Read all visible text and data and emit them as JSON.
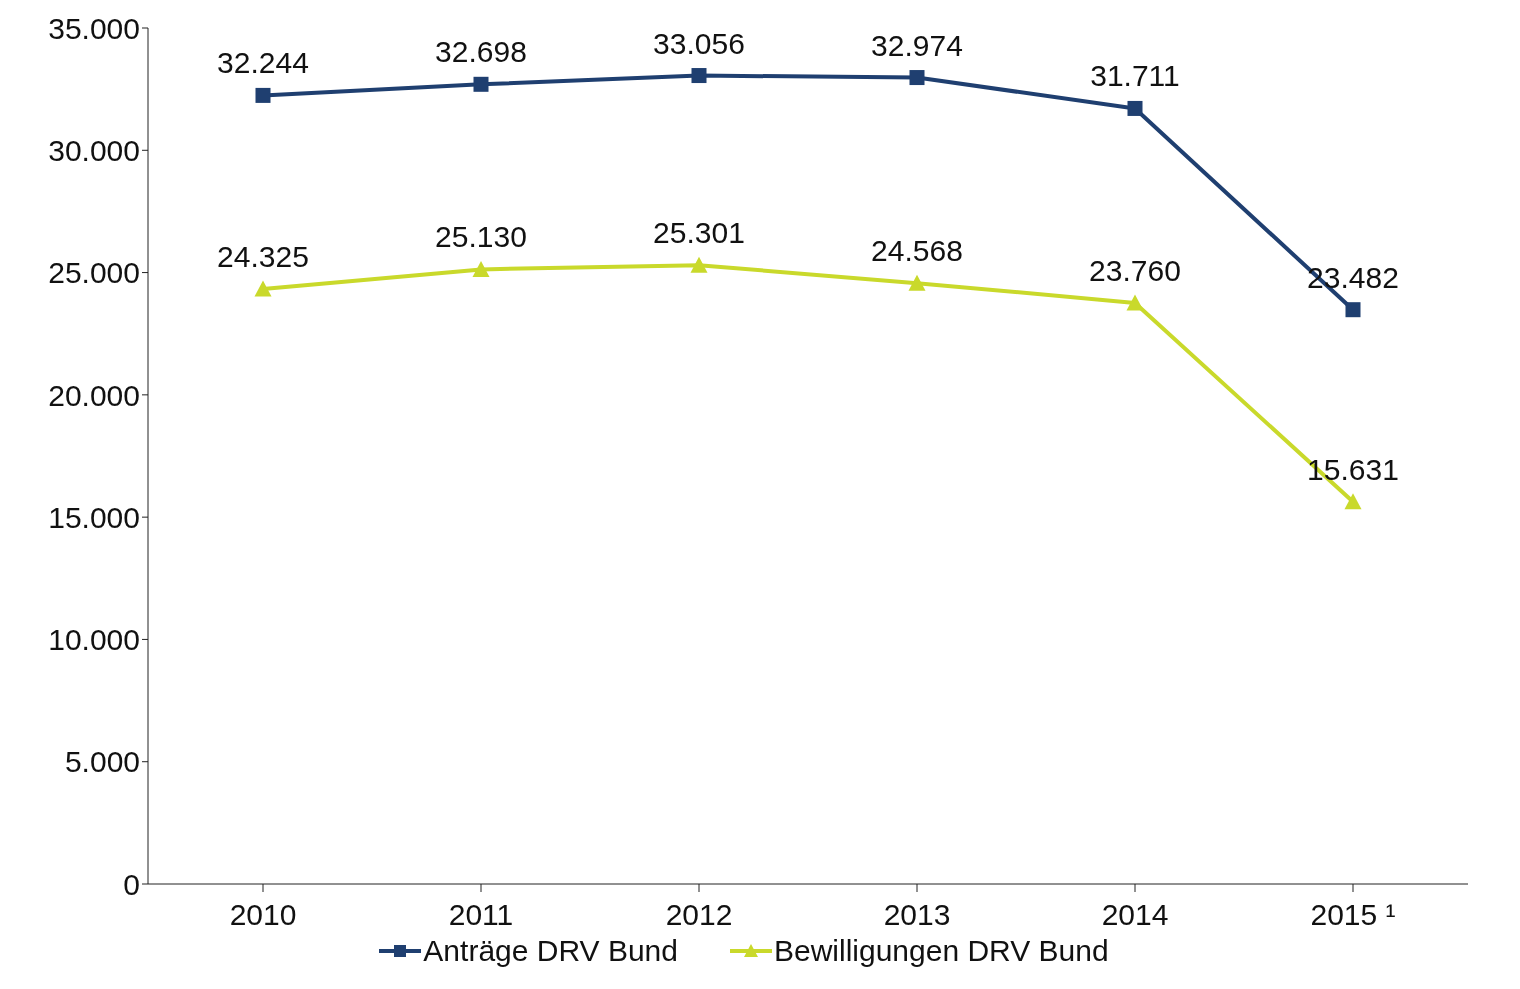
{
  "chart_data": {
    "type": "line",
    "categories": [
      "2010",
      "2011",
      "2012",
      "2013",
      "2014",
      "2015 ¹"
    ],
    "series": [
      {
        "name": "Anträge DRV Bund",
        "color": "#1f3f70",
        "marker": "square",
        "values": [
          32244,
          32698,
          33056,
          32974,
          31711,
          23482
        ],
        "value_labels": [
          "32.244",
          "32.698",
          "33.056",
          "32.974",
          "31.711",
          "23.482"
        ]
      },
      {
        "name": "Bewilligungen DRV Bund",
        "color": "#c9d92b",
        "marker": "triangle",
        "values": [
          24325,
          25130,
          25301,
          24568,
          23760,
          15631
        ],
        "value_labels": [
          "24.325",
          "25.130",
          "25.301",
          "24.568",
          "23.760",
          "15.631"
        ]
      }
    ],
    "ylim": [
      0,
      35000
    ],
    "yticks": [
      {
        "value": 0,
        "label": "0"
      },
      {
        "value": 5000,
        "label": "5.000"
      },
      {
        "value": 10000,
        "label": "10.000"
      },
      {
        "value": 15000,
        "label": "15.000"
      },
      {
        "value": 20000,
        "label": "20.000"
      },
      {
        "value": 25000,
        "label": "25.000"
      },
      {
        "value": 30000,
        "label": "30.000"
      },
      {
        "value": 35000,
        "label": "35.000"
      }
    ],
    "grid": false,
    "legend": "bottom",
    "line_style": "solid"
  }
}
